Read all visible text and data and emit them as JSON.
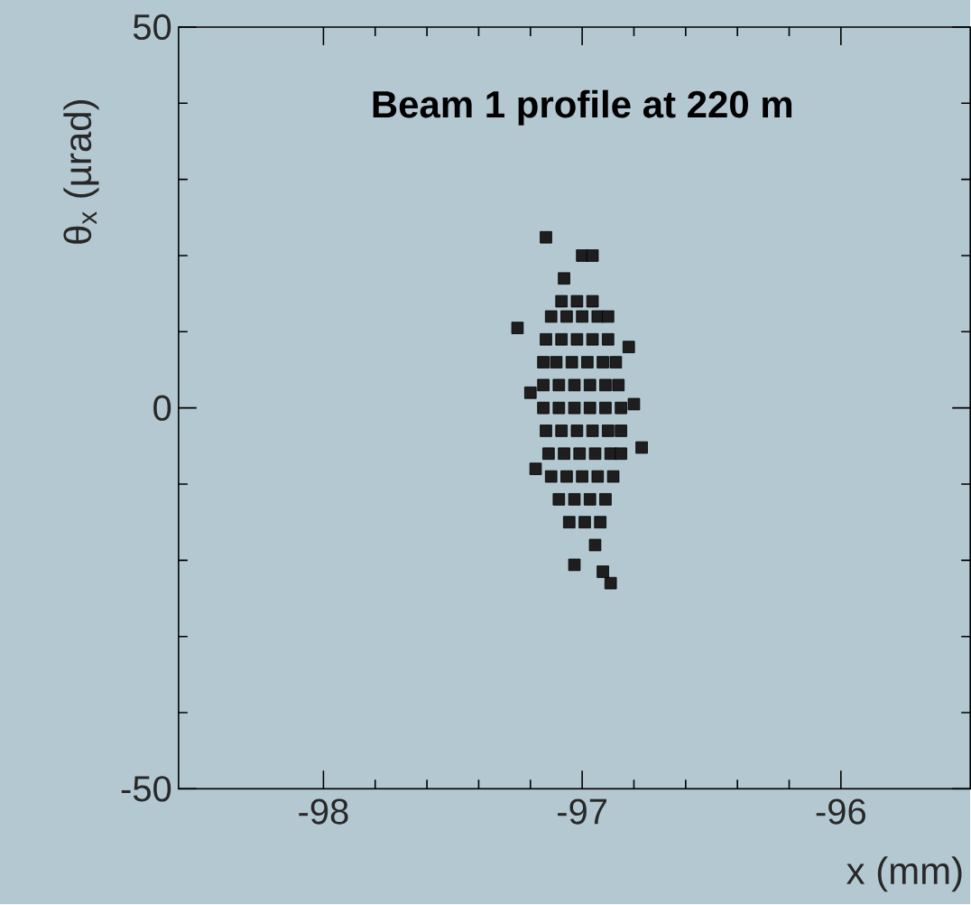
{
  "chart_data": {
    "type": "scatter",
    "title": "Beam 1 profile at 220 m",
    "xlabel": "x (mm)",
    "ylabel": "θ$_{x}$ (µrad)",
    "xlim": [
      -98.56,
      -95.5
    ],
    "ylim": [
      -50,
      50
    ],
    "xticks": [
      -98,
      -97,
      -96
    ],
    "yticks": [
      -50,
      0,
      50
    ],
    "marker": "square",
    "series": [
      {
        "color": "#1e1e1e",
        "x": [
          -97.08,
          -97.02,
          -96.96,
          -97.12,
          -97.06,
          -97.0,
          -96.94,
          -96.9,
          -97.14,
          -97.08,
          -97.02,
          -96.96,
          -96.9,
          -97.15,
          -97.1,
          -97.04,
          -96.98,
          -96.92,
          -96.87,
          -97.15,
          -97.09,
          -97.03,
          -96.97,
          -96.91,
          -96.86,
          -97.15,
          -97.09,
          -97.03,
          -96.97,
          -96.91,
          -96.85,
          -97.14,
          -97.08,
          -97.02,
          -96.96,
          -96.9,
          -96.85,
          -97.13,
          -97.07,
          -97.01,
          -96.95,
          -96.89,
          -96.85,
          -97.12,
          -97.06,
          -97.0,
          -96.94,
          -96.88,
          -97.09,
          -97.03,
          -96.97,
          -96.91,
          -97.05,
          -96.99,
          -96.93,
          -97.14,
          -97.0,
          -96.96,
          -97.25,
          -97.2,
          -96.8,
          -96.77,
          -96.89,
          -97.03,
          -96.95,
          -97.18,
          -96.82,
          -97.07,
          -96.92
        ],
        "values": [
          14,
          14,
          14,
          12,
          12,
          12,
          12,
          12,
          9,
          9,
          9,
          9,
          9,
          6,
          6,
          6,
          6,
          6,
          6,
          3,
          3,
          3,
          3,
          3,
          3,
          0,
          0,
          0,
          0,
          0,
          0,
          -3,
          -3,
          -3,
          -3,
          -3,
          -3,
          -6,
          -6,
          -6,
          -6,
          -6,
          -6,
          -9,
          -9,
          -9,
          -9,
          -9,
          -12,
          -12,
          -12,
          -12,
          -15,
          -15,
          -15,
          22.4,
          20,
          20,
          10.5,
          2,
          0.5,
          -5.2,
          -23,
          -20.6,
          -18,
          -8,
          8,
          17,
          -21.5
        ]
      }
    ]
  }
}
